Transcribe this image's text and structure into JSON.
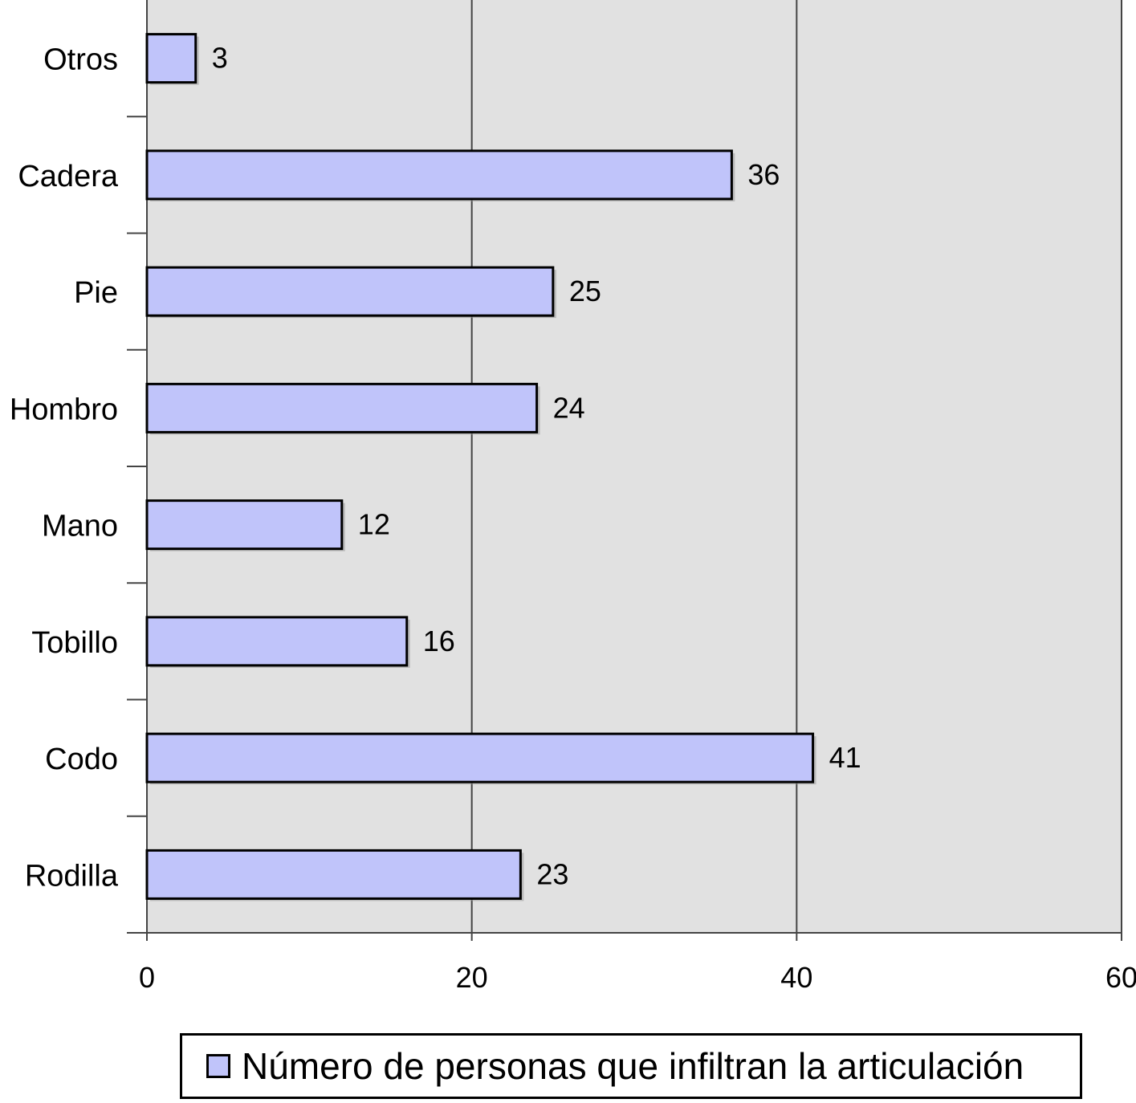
{
  "chart_data": {
    "type": "bar",
    "orientation": "horizontal",
    "categories": [
      "Otros",
      "Cadera",
      "Pie",
      "Hombro",
      "Mano",
      "Tobillo",
      "Codo",
      "Rodilla"
    ],
    "series": [
      {
        "name": "Número de personas que infiltran la articulación",
        "values": [
          3,
          36,
          25,
          24,
          12,
          16,
          41,
          23
        ]
      }
    ],
    "xlim": [
      0,
      60
    ],
    "xticks": [
      "0",
      "20",
      "40",
      "60"
    ],
    "grid": true,
    "legend": "bottom",
    "colors": {
      "bar_fill": "#c0c4fa",
      "plot_bg": "#e1e1e1",
      "grid": "#444444"
    }
  }
}
